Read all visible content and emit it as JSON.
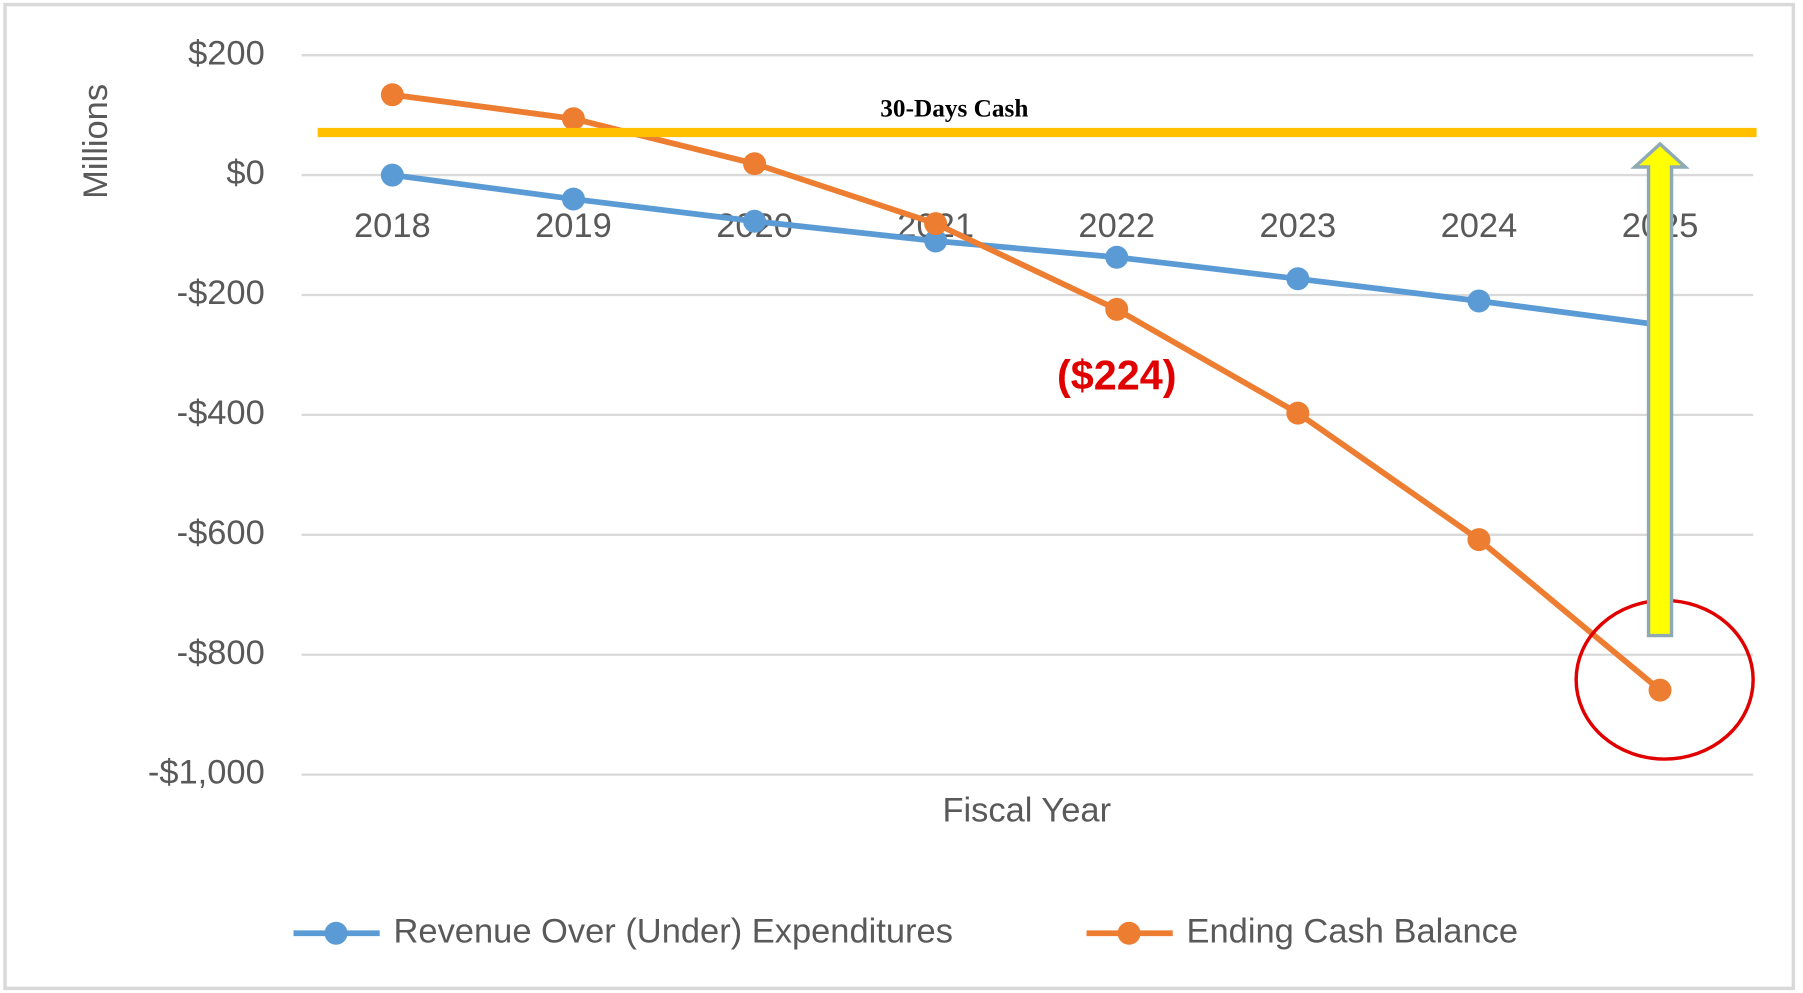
{
  "chart_data": {
    "type": "line",
    "y_label": "Millions",
    "x_label": "Fiscal Year",
    "categories": [
      "2018",
      "2019",
      "2020",
      "2021",
      "2022",
      "2023",
      "2024",
      "2025"
    ],
    "series": [
      {
        "name": "Revenue Over (Under) Expenditures",
        "color": "#5b9bd5",
        "values": [
          0,
          -40,
          -77,
          -110,
          -137,
          -173,
          -210,
          -250
        ]
      },
      {
        "name": "Ending Cash Balance",
        "color": "#ed7d31",
        "values": [
          134,
          94,
          19,
          -81,
          -224,
          -397,
          -608,
          -859
        ],
        "value_labels": [
          null,
          null,
          null,
          null,
          "($224)",
          null,
          null,
          null
        ]
      }
    ],
    "reference_line": {
      "label": "30-Days Cash",
      "value": 71,
      "color": "#ffc000"
    },
    "ylim": [
      -1000,
      200
    ],
    "yticks": [
      {
        "value": 200,
        "label": "$200"
      },
      {
        "value": 0,
        "label": "$0"
      },
      {
        "value": -200,
        "label": "-$200"
      },
      {
        "value": -400,
        "label": "-$400"
      },
      {
        "value": -600,
        "label": "-$600"
      },
      {
        "value": -800,
        "label": "-$800"
      },
      {
        "value": -1000,
        "label": "-$1,000"
      }
    ],
    "grid": true,
    "legend": "bottom"
  }
}
